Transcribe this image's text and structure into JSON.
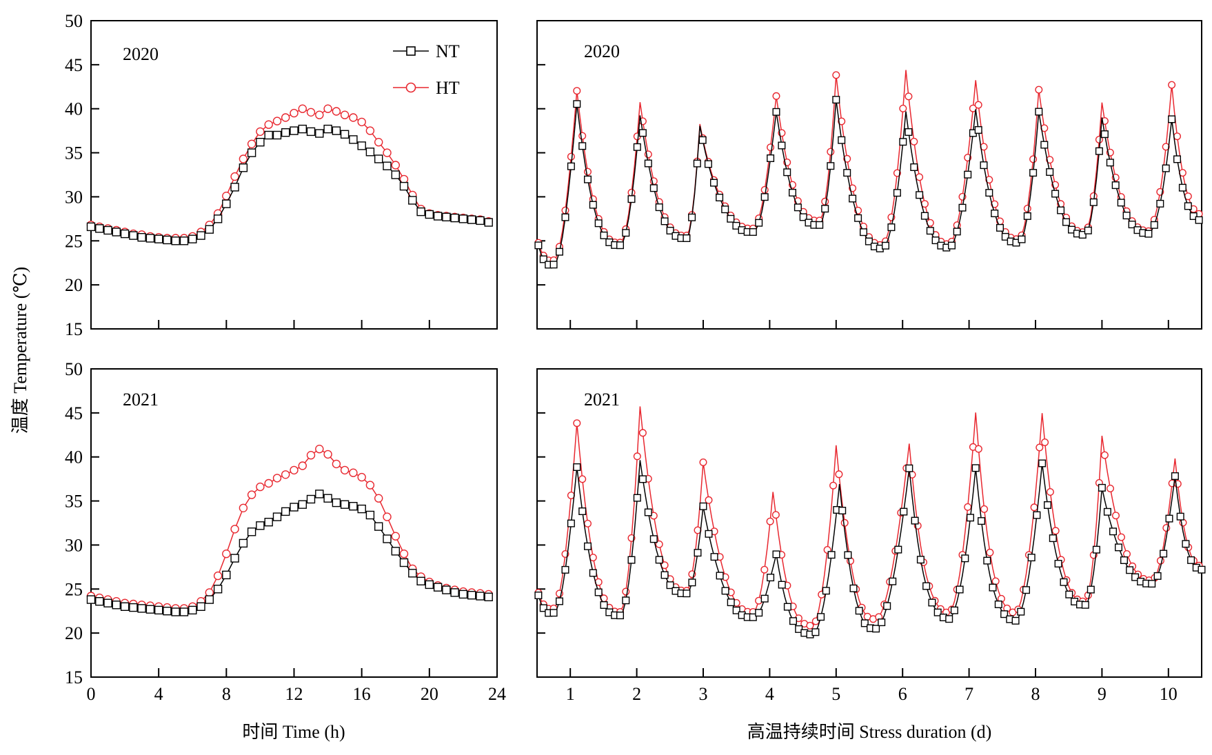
{
  "figure": {
    "ylabel": "温度 Temperature (℃)",
    "xlabel_left": "时间 Time (h)",
    "xlabel_right": "高温持续时间 Stress duration (d)"
  },
  "legend": {
    "placement": "top-right of upper-left panel",
    "entries": [
      {
        "name": "NT",
        "color": "#000000",
        "marker": "square"
      },
      {
        "name": "HT",
        "color": "#e8272f",
        "marker": "circle"
      }
    ]
  },
  "chart_data": [
    {
      "type": "line",
      "panel": "daily-2020",
      "year_label": "2020",
      "xlabel": "时间 Time (h)",
      "ylabel": "温度 Temperature (℃)",
      "xlim": [
        0,
        24
      ],
      "ylim": [
        15,
        50
      ],
      "xticks": [
        0,
        4,
        8,
        12,
        16,
        20,
        24
      ],
      "yticks": [
        15,
        20,
        25,
        30,
        35,
        40,
        45,
        50
      ],
      "grid": false,
      "x": [
        0,
        0.5,
        1,
        1.5,
        2,
        2.5,
        3,
        3.5,
        4,
        4.5,
        5,
        5.5,
        6,
        6.5,
        7,
        7.5,
        8,
        8.5,
        9,
        9.5,
        10,
        10.5,
        11,
        11.5,
        12,
        12.5,
        13,
        13.5,
        14,
        14.5,
        15,
        15.5,
        16,
        16.5,
        17,
        17.5,
        18,
        18.5,
        19,
        19.5,
        20,
        20.5,
        21,
        21.5,
        22,
        22.5,
        23,
        23.5
      ],
      "series": [
        {
          "name": "NT",
          "values": [
            26.6,
            26.4,
            26.2,
            26.0,
            25.8,
            25.6,
            25.4,
            25.3,
            25.2,
            25.1,
            25.0,
            25.0,
            25.2,
            25.6,
            26.3,
            27.5,
            29.2,
            31.1,
            33.3,
            35.0,
            36.2,
            37.0,
            37.0,
            37.3,
            37.5,
            37.7,
            37.4,
            37.2,
            37.7,
            37.5,
            37.1,
            36.5,
            35.8,
            35.1,
            34.3,
            33.5,
            32.5,
            31.2,
            29.6,
            28.3,
            28.0,
            27.8,
            27.7,
            27.6,
            27.5,
            27.4,
            27.3,
            27.1
          ]
        },
        {
          "name": "HT",
          "values": [
            26.8,
            26.6,
            26.4,
            26.2,
            26.0,
            25.8,
            25.7,
            25.5,
            25.4,
            25.3,
            25.3,
            25.3,
            25.5,
            26.0,
            26.8,
            28.1,
            30.1,
            32.3,
            34.3,
            36.0,
            37.4,
            38.2,
            38.6,
            39.0,
            39.5,
            40.0,
            39.6,
            39.3,
            40.0,
            39.7,
            39.3,
            39.0,
            38.5,
            37.5,
            36.2,
            35.0,
            33.6,
            32.0,
            30.2,
            28.6,
            28.1,
            27.9,
            27.8,
            27.7,
            27.6,
            27.5,
            27.4,
            27.2
          ]
        }
      ]
    },
    {
      "type": "line",
      "panel": "duration-2020",
      "year_label": "2020",
      "xlabel": "高温持续时间 Stress duration (d)",
      "xlim": [
        0.5,
        10.5
      ],
      "ylim": [
        15,
        50
      ],
      "xticks": [
        1,
        2,
        3,
        4,
        5,
        6,
        7,
        8,
        9,
        10
      ],
      "grid": false,
      "series": [
        {
          "name": "NT",
          "trough": [
            24.5,
            22.3,
            24.5,
            25.3,
            26.0,
            26.8,
            24.1,
            24.2,
            24.8,
            25.7,
            25.8,
            27.3
          ],
          "trough_x": [
            0.52,
            0.75,
            1.75,
            2.75,
            3.75,
            4.75,
            5.7,
            6.7,
            7.75,
            8.75,
            9.7,
            10.5
          ],
          "peak": [
            40.5,
            38.8,
            38.5,
            39.5,
            41.2,
            39.3,
            39.7,
            39.3,
            39.3,
            38.5
          ],
          "peak_x": [
            1.1,
            2.05,
            2.95,
            4.1,
            5.0,
            6.05,
            7.1,
            8.05,
            9.0,
            10.05
          ]
        },
        {
          "name": "HT",
          "trough": [
            24.8,
            22.8,
            24.8,
            25.6,
            26.4,
            27.3,
            24.5,
            24.6,
            25.2,
            26.0,
            26.1,
            28.0
          ],
          "trough_x": [
            0.52,
            0.75,
            1.75,
            2.75,
            3.75,
            4.75,
            5.7,
            6.7,
            7.75,
            8.75,
            9.7,
            10.5
          ],
          "peak": [
            42.0,
            40.3,
            38.7,
            41.3,
            44.0,
            44.0,
            43.0,
            41.8,
            41.0,
            42.4
          ],
          "peak_x": [
            1.1,
            2.05,
            2.95,
            4.1,
            5.0,
            6.05,
            7.1,
            8.05,
            9.0,
            10.05
          ]
        }
      ]
    },
    {
      "type": "line",
      "panel": "daily-2021",
      "year_label": "2021",
      "xlabel": "时间 Time (h)",
      "ylabel": "温度 Temperature (℃)",
      "xlim": [
        0,
        24
      ],
      "ylim": [
        15,
        50
      ],
      "xticks": [
        0,
        4,
        8,
        12,
        16,
        20,
        24
      ],
      "yticks": [
        15,
        20,
        25,
        30,
        35,
        40,
        45,
        50
      ],
      "grid": false,
      "x": [
        0,
        0.5,
        1,
        1.5,
        2,
        2.5,
        3,
        3.5,
        4,
        4.5,
        5,
        5.5,
        6,
        6.5,
        7,
        7.5,
        8,
        8.5,
        9,
        9.5,
        10,
        10.5,
        11,
        11.5,
        12,
        12.5,
        13,
        13.5,
        14,
        14.5,
        15,
        15.5,
        16,
        16.5,
        17,
        17.5,
        18,
        18.5,
        19,
        19.5,
        20,
        20.5,
        21,
        21.5,
        22,
        22.5,
        23,
        23.5
      ],
      "series": [
        {
          "name": "NT",
          "values": [
            23.8,
            23.6,
            23.4,
            23.2,
            23.0,
            22.9,
            22.8,
            22.7,
            22.6,
            22.5,
            22.4,
            22.4,
            22.6,
            23.0,
            23.8,
            25.0,
            26.6,
            28.5,
            30.2,
            31.5,
            32.2,
            32.6,
            33.2,
            33.8,
            34.3,
            34.6,
            35.2,
            35.8,
            35.3,
            34.8,
            34.6,
            34.4,
            34.1,
            33.4,
            32.1,
            30.7,
            29.3,
            28.0,
            26.8,
            25.9,
            25.5,
            25.2,
            24.9,
            24.6,
            24.4,
            24.3,
            24.2,
            24.1
          ]
        },
        {
          "name": "HT",
          "values": [
            24.2,
            24.0,
            23.8,
            23.6,
            23.4,
            23.3,
            23.2,
            23.1,
            23.0,
            22.9,
            22.8,
            22.8,
            23.0,
            23.6,
            24.6,
            26.5,
            29.0,
            31.8,
            34.2,
            35.7,
            36.6,
            37.0,
            37.6,
            38.0,
            38.5,
            39.0,
            40.2,
            40.9,
            40.3,
            39.2,
            38.5,
            38.2,
            37.7,
            36.8,
            35.3,
            33.2,
            31.0,
            29.0,
            27.3,
            26.4,
            25.8,
            25.4,
            25.1,
            24.9,
            24.7,
            24.6,
            24.5,
            24.4
          ]
        }
      ]
    },
    {
      "type": "line",
      "panel": "duration-2021",
      "year_label": "2021",
      "xlabel": "高温持续时间 Stress duration (d)",
      "xlim": [
        0.5,
        10.5
      ],
      "ylim": [
        15,
        50
      ],
      "xticks": [
        1,
        2,
        3,
        4,
        5,
        6,
        7,
        8,
        9,
        10
      ],
      "grid": false,
      "series": [
        {
          "name": "NT",
          "trough": [
            24.3,
            22.3,
            22.0,
            24.5,
            21.8,
            19.8,
            20.5,
            21.6,
            21.4,
            23.2,
            25.6,
            27.2
          ],
          "trough_x": [
            0.52,
            0.75,
            1.75,
            2.75,
            3.75,
            4.65,
            5.6,
            6.7,
            7.7,
            8.75,
            9.75,
            10.5
          ],
          "peak": [
            38.8,
            39.2,
            34.5,
            28.8,
            36.5,
            38.5,
            38.5,
            39.0,
            36.8,
            37.5
          ],
          "peak_x": [
            1.1,
            2.05,
            3.0,
            4.1,
            5.05,
            6.1,
            7.1,
            8.1,
            9.0,
            10.1
          ]
        },
        {
          "name": "HT",
          "trough": [
            24.6,
            22.8,
            22.4,
            24.8,
            22.4,
            20.8,
            21.6,
            22.3,
            22.3,
            23.6,
            26.0,
            27.6
          ],
          "trough_x": [
            0.52,
            0.75,
            1.75,
            2.75,
            3.75,
            4.65,
            5.6,
            6.7,
            7.7,
            8.75,
            9.75,
            10.5
          ],
          "peak": [
            43.8,
            45.3,
            39.5,
            35.6,
            41.5,
            41.3,
            44.8,
            44.7,
            42.7,
            39.5
          ],
          "peak_x": [
            1.1,
            2.05,
            3.0,
            4.05,
            5.0,
            6.1,
            7.1,
            8.1,
            9.0,
            10.1
          ]
        }
      ]
    }
  ]
}
